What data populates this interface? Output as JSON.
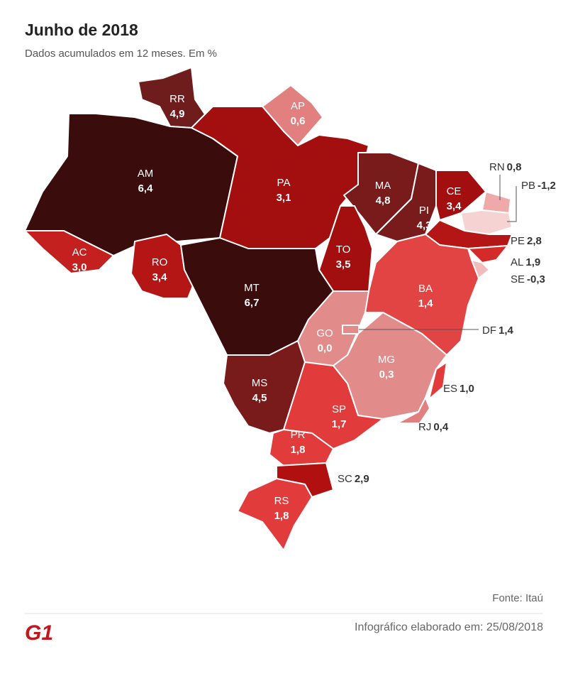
{
  "chart_data": {
    "type": "choropleth",
    "title": "Junho de 2018",
    "subtitle": "Dados acumulados em 12 meses.  Em %",
    "categories": [
      "RR",
      "AP",
      "AM",
      "PA",
      "MA",
      "CE",
      "PI",
      "RN",
      "PB",
      "PE",
      "AL",
      "SE",
      "AC",
      "RO",
      "TO",
      "MT",
      "BA",
      "GO",
      "DF",
      "MG",
      "ES",
      "MS",
      "SP",
      "RJ",
      "PR",
      "SC",
      "RS"
    ],
    "values": [
      4.9,
      0.6,
      6.4,
      3.1,
      4.8,
      3.4,
      4.3,
      0.8,
      -1.2,
      2.8,
      1.9,
      -0.3,
      3.0,
      3.4,
      3.5,
      6.7,
      1.4,
      0.0,
      1.4,
      0.3,
      1.0,
      4.5,
      1.7,
      0.4,
      1.8,
      2.9,
      1.8
    ],
    "value_labels": [
      "4,9",
      "0,6",
      "6,4",
      "3,1",
      "4,8",
      "3,4",
      "4,3",
      "0,8",
      "-1,2",
      "2,8",
      "1,9",
      "-0,3",
      "3,0",
      "3,4",
      "3,5",
      "6,7",
      "1,4",
      "0,0",
      "1,4",
      "0,3",
      "1,0",
      "4,5",
      "1,7",
      "0,4",
      "1,8",
      "2,9",
      "1,8"
    ],
    "colors": [
      "#6e1c1c",
      "#e27f7f",
      "#3a0c0c",
      "#a30f0f",
      "#7a1b1b",
      "#a30f0f",
      "#7a1b1b",
      "#efa9a9",
      "#f6d3d3",
      "#b41616",
      "#d42a2a",
      "#f2bcbc",
      "#c42020",
      "#b41616",
      "#a30f0f",
      "#3a0c0c",
      "#e24444",
      "#e28b8b",
      "#e28b8b",
      "#e28b8b",
      "#e23b3b",
      "#7a1b1b",
      "#e23b3b",
      "#e27f7f",
      "#e23b3b",
      "#b01010",
      "#e23b3b"
    ],
    "source": "Fonte: Itaú",
    "footer": "Infográfico elaborado em: 25/08/2018",
    "logo": "G1"
  }
}
